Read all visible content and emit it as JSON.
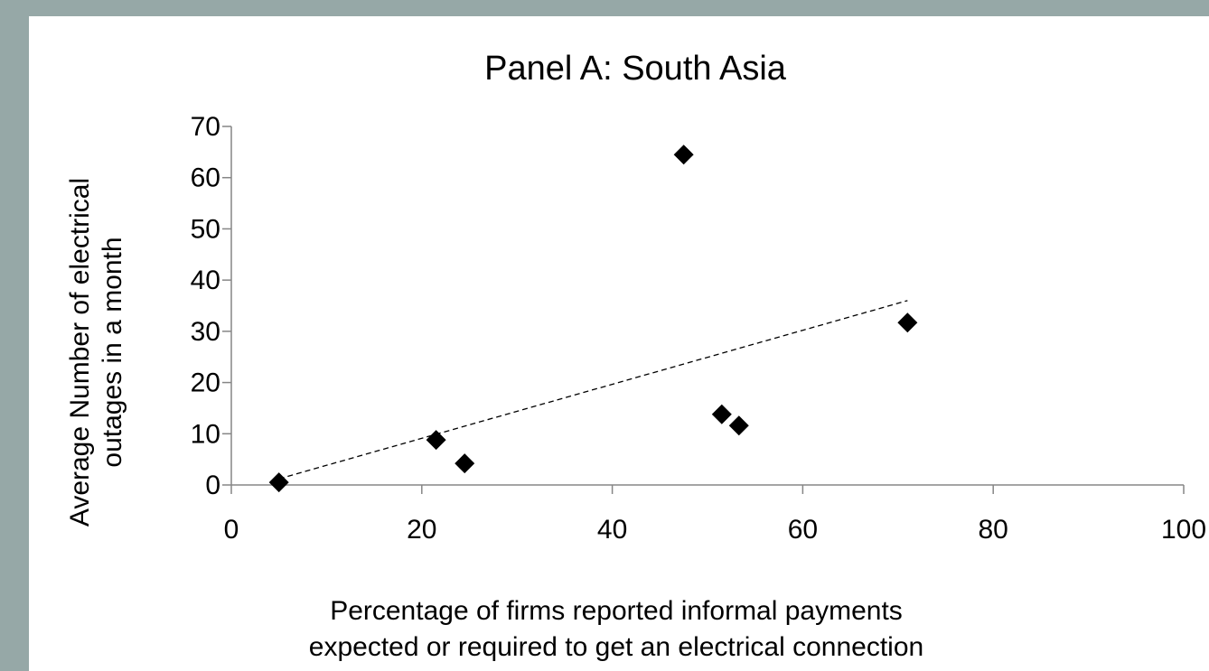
{
  "chart_data": {
    "type": "scatter",
    "title": "Panel A: South Asia",
    "xlabel_lines": [
      "Percentage of firms reported informal payments",
      "expected or required to get an electrical connection"
    ],
    "ylabel_lines": [
      "Average Number of electrical",
      "outages in a month"
    ],
    "xlim": [
      0,
      100
    ],
    "ylim": [
      0,
      70
    ],
    "xticks": [
      0,
      20,
      40,
      60,
      80,
      100
    ],
    "yticks": [
      0,
      10,
      20,
      30,
      40,
      50,
      60,
      70
    ],
    "xtick_labels": [
      "0",
      "20",
      "40",
      "60",
      "80",
      "100"
    ],
    "ytick_labels": [
      "0",
      "10",
      "20",
      "30",
      "40",
      "50",
      "60",
      "70"
    ],
    "grid": false,
    "legend": "none",
    "marker": "diamond",
    "marker_color": "#000000",
    "points": [
      {
        "x": 5.0,
        "y": 0.5
      },
      {
        "x": 21.5,
        "y": 8.8
      },
      {
        "x": 24.5,
        "y": 4.2
      },
      {
        "x": 47.5,
        "y": 64.5
      },
      {
        "x": 51.5,
        "y": 13.8
      },
      {
        "x": 53.3,
        "y": 11.6
      },
      {
        "x": 71.0,
        "y": 31.7
      }
    ],
    "trendline": {
      "style": "dashed",
      "from": {
        "x": 5.0,
        "y": 1.2
      },
      "to": {
        "x": 71.0,
        "y": 36.0
      }
    }
  }
}
